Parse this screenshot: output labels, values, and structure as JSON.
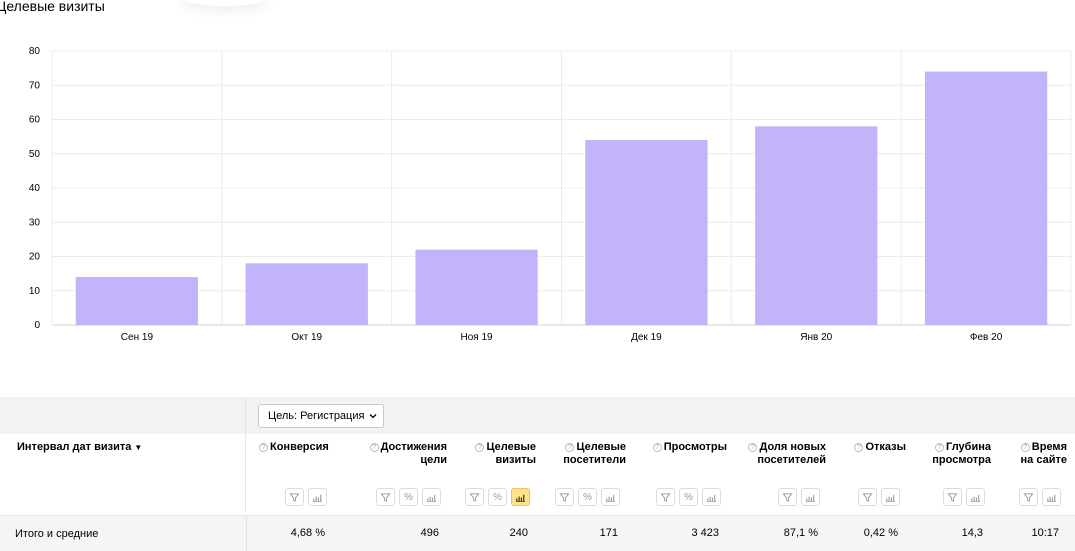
{
  "report": {
    "title": "Целевые визиты"
  },
  "chart_data": {
    "type": "bar",
    "title": "Целевые визиты",
    "categories": [
      "Сен 19",
      "Окт 19",
      "Ноя 19",
      "Дек 19",
      "Янв 20",
      "Фев 20"
    ],
    "values": [
      14,
      18,
      22,
      54,
      58,
      74
    ],
    "ylim": [
      0,
      80
    ],
    "yticks": [
      0,
      10,
      20,
      30,
      40,
      50,
      60,
      70,
      80
    ],
    "xlabel": "",
    "ylabel": "",
    "grid": true,
    "bar_color": "#c3b3fa"
  },
  "goal_select": {
    "label": "Цель: Регистрация"
  },
  "table": {
    "dimension_label": "Интервал дат визита",
    "sort_arrow": "▼",
    "help_glyph": "?",
    "metrics": [
      {
        "name": "Конверсия",
        "tools": [
          "filter",
          "chart"
        ]
      },
      {
        "name": "Достижения цели",
        "tools": [
          "filter",
          "percent",
          "chart"
        ]
      },
      {
        "name": "Целевые визиты",
        "tools": [
          "filter",
          "percent",
          "chart-active"
        ]
      },
      {
        "name": "Целевые посетители",
        "tools": [
          "filter",
          "percent",
          "chart"
        ]
      },
      {
        "name": "Просмотры",
        "tools": [
          "filter",
          "percent",
          "chart"
        ]
      },
      {
        "name": "Доля новых посетителей",
        "tools": [
          "filter",
          "chart"
        ]
      },
      {
        "name": "Отказы",
        "tools": [
          "filter",
          "chart"
        ]
      },
      {
        "name": "Глубина просмотра",
        "tools": [
          "filter",
          "chart"
        ]
      },
      {
        "name": "Время на сайте",
        "tools": [
          "filter",
          "chart"
        ]
      }
    ],
    "totals_label": "Итого и средние",
    "totals": [
      "4,68 %",
      "496",
      "240",
      "171",
      "3 423",
      "87,1 %",
      "0,42 %",
      "14,3",
      "10:17"
    ],
    "percent_glyph": "%"
  }
}
